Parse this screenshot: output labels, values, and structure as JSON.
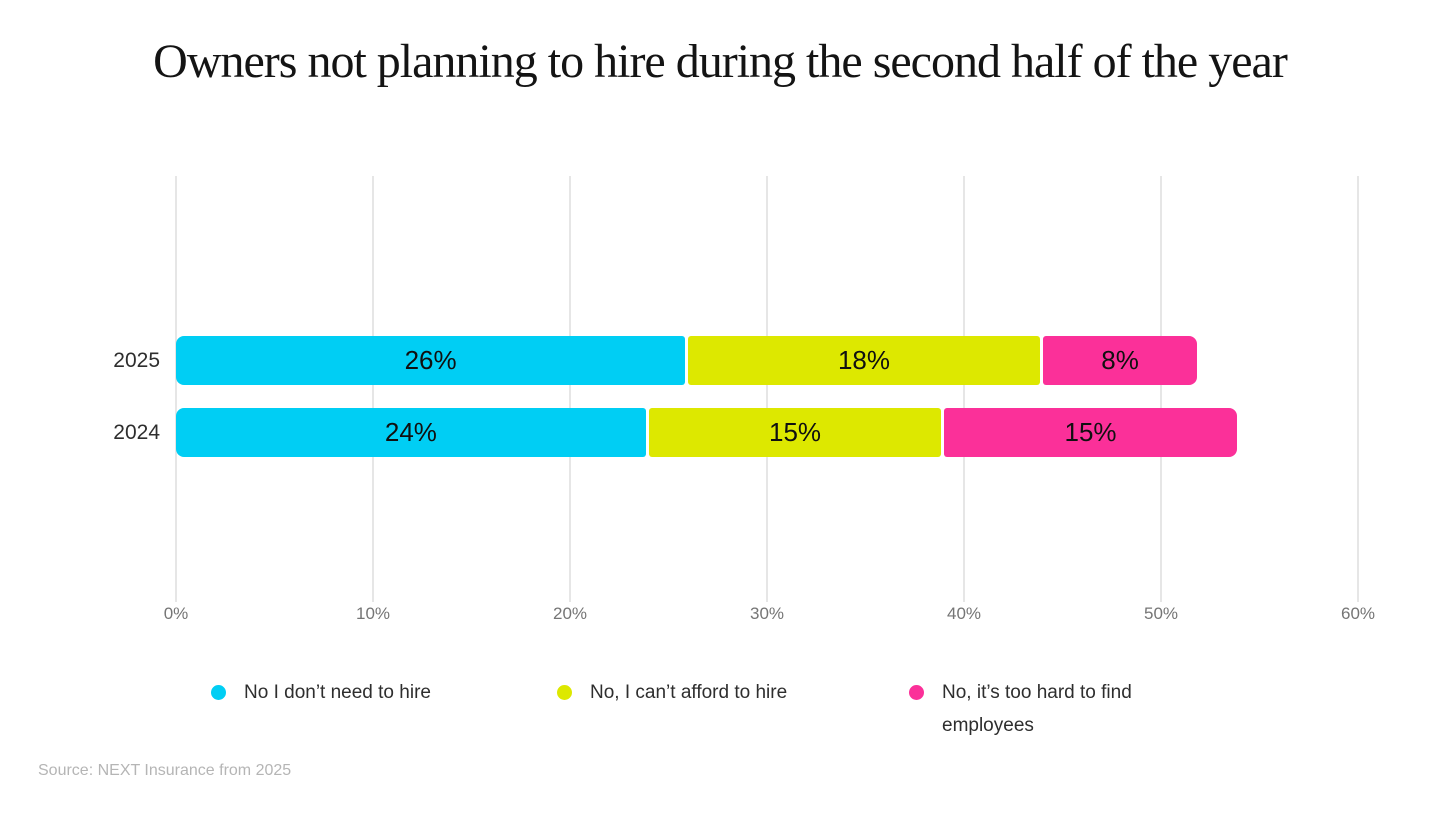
{
  "title": "Owners not planning to hire during the second half of the year",
  "source": "Source: NEXT Insurance from 2025",
  "chart_data": {
    "type": "bar",
    "orientation": "horizontal",
    "stacked": true,
    "title": "Owners not planning to hire during the second half of the year",
    "categories": [
      "2025",
      "2024"
    ],
    "series": [
      {
        "name": "No I don’t need to hire",
        "color": "#00CEF4",
        "values": [
          26,
          24
        ]
      },
      {
        "name": "No, I can’t afford to hire",
        "color": "#DDE800",
        "values": [
          18,
          15
        ]
      },
      {
        "name": "No, it’s too hard to find employees",
        "color": "#FB3099",
        "values": [
          8,
          15
        ]
      }
    ],
    "bar_labels": [
      [
        "26%",
        "18%",
        "8%"
      ],
      [
        "24%",
        "15%",
        "15%"
      ]
    ],
    "x_ticks": [
      "0%",
      "10%",
      "20%",
      "30%",
      "40%",
      "50%",
      "60%"
    ],
    "xlim": [
      0,
      60
    ],
    "xlabel": "",
    "ylabel": "",
    "grid": "vertical",
    "legend_position": "bottom",
    "colors": {
      "grid": "#e6e6e6",
      "tick_text": "#757575",
      "value_text": "#101010",
      "category_text": "#2e2e2e",
      "source_text": "#b5b5b5"
    }
  }
}
